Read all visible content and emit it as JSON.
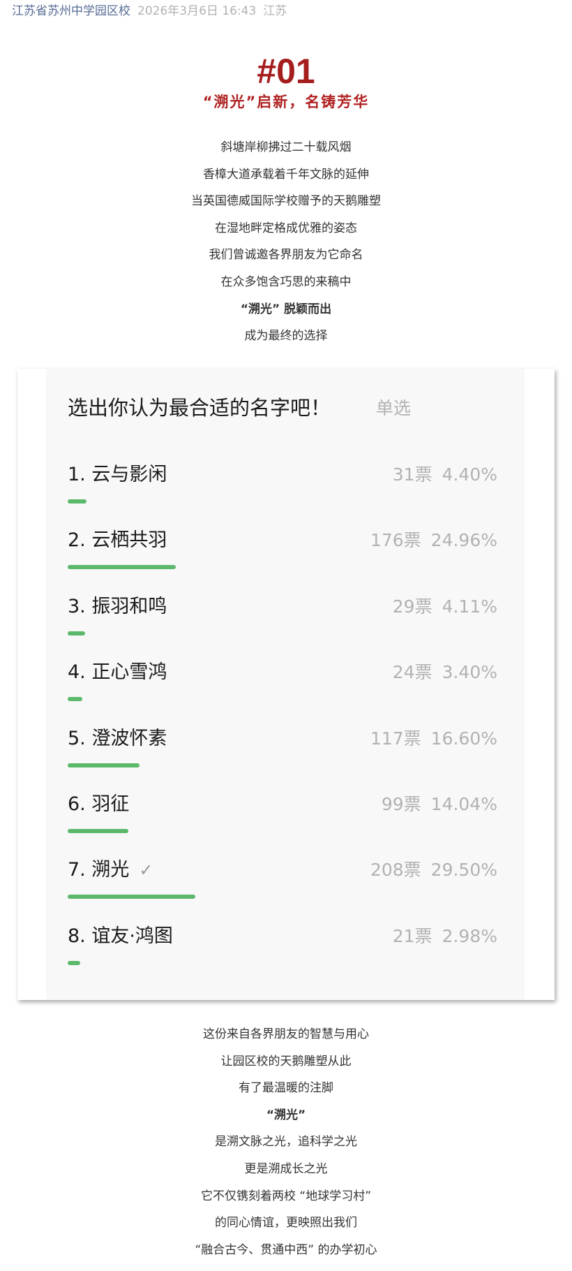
{
  "header": {
    "account": "江苏省苏州中学园区校",
    "time": "2026年3月6日 16:43",
    "location": "江苏"
  },
  "section": {
    "number": "#01",
    "subtitle": "“溯光”启新，名铸芳华"
  },
  "intro_lines": [
    "斜塘岸柳拂过二十载风烟",
    "香樟大道承载着千年文脉的延伸",
    "当英国德威国际学校赠予的天鹅雕塑",
    "在湿地畔定格成优雅的姿态",
    "我们曾诚邀各界朋友为它命名",
    "在众多饱含巧思的来稿中",
    "“溯光” 脱颖而出",
    "成为最终的选择"
  ],
  "poll": {
    "title": "选出你认为最合适的名字吧！",
    "type": "单选",
    "bar_color": "#5cb96b",
    "options": [
      {
        "label": "1. 云与影闲",
        "votes": "31票",
        "percent": "4.40%",
        "value": 4.4,
        "selected": false
      },
      {
        "label": "2. 云栖共羽",
        "votes": "176票",
        "percent": "24.96%",
        "value": 24.96,
        "selected": false
      },
      {
        "label": "3. 振羽和鸣",
        "votes": "29票",
        "percent": "4.11%",
        "value": 4.11,
        "selected": false
      },
      {
        "label": "4. 正心雪鸿",
        "votes": "24票",
        "percent": "3.40%",
        "value": 3.4,
        "selected": false
      },
      {
        "label": "5. 澄波怀素",
        "votes": "117票",
        "percent": "16.60%",
        "value": 16.6,
        "selected": false
      },
      {
        "label": "6. 羽征",
        "votes": "99票",
        "percent": "14.04%",
        "value": 14.04,
        "selected": false
      },
      {
        "label": "7. 溯光",
        "votes": "208票",
        "percent": "29.50%",
        "value": 29.5,
        "selected": true
      },
      {
        "label": "8. 谊友·鸿图",
        "votes": "21票",
        "percent": "2.98%",
        "value": 2.98,
        "selected": false
      }
    ]
  },
  "outro_lines": [
    "这份来自各界朋友的智慧与用心",
    "让园区校的天鹅雕塑从此",
    "有了最温暖的注脚",
    "“溯光”",
    "是溯文脉之光，追科学之光",
    "更是溯成长之光",
    "它不仅镌刻着两校 “地球学习村”",
    "的同心情谊，更映照出我们",
    "“融合古今、贯通中西” 的办学初心"
  ],
  "colors": {
    "accent_red": "#a51d1d",
    "account_link": "#576b95"
  }
}
